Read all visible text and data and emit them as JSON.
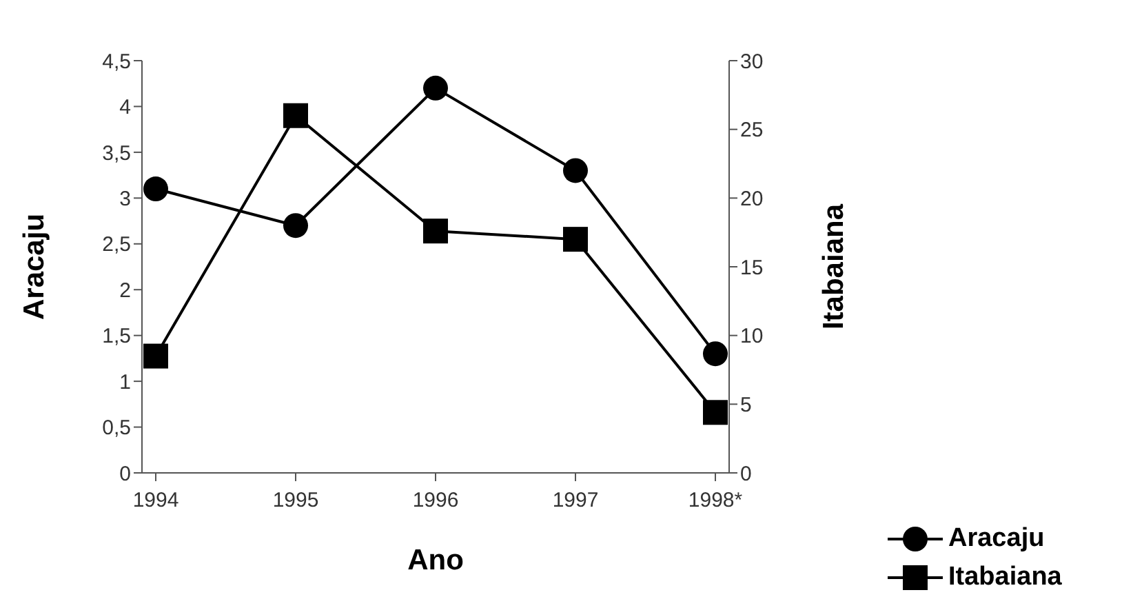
{
  "chart_data": {
    "type": "line",
    "xlabel": "Ano",
    "ylabel": "Aracaju",
    "y2label": "Itabaiana",
    "categories": [
      "1994",
      "1995",
      "1996",
      "1997",
      "1998*"
    ],
    "series": [
      {
        "name": "Aracaju",
        "color": "#000000",
        "marker": "circle",
        "values": [
          3.1,
          2.7,
          4.2,
          3.3,
          1.3
        ]
      },
      {
        "name": "Itabaiana",
        "color": "#000000",
        "marker": "square",
        "axis": "y2",
        "values": [
          8.5,
          26,
          17.6,
          17,
          4.4
        ]
      }
    ],
    "ylim": [
      0,
      4.5
    ],
    "yticks": [
      0,
      {
        "value": 0.5,
        "label": "0,5"
      },
      1,
      {
        "value": 1.5,
        "label": "1,5"
      },
      2,
      {
        "value": 2.5,
        "label": "2,5"
      },
      3,
      {
        "value": 3.5,
        "label": "3,5"
      },
      4,
      {
        "value": 4.5,
        "label": "4,5"
      }
    ],
    "y2lim": [
      0,
      30
    ],
    "y2ticks": [
      0,
      5,
      10,
      15,
      20,
      25,
      30
    ],
    "grid": false,
    "legend": "bottom right",
    "line_style": "solid"
  }
}
